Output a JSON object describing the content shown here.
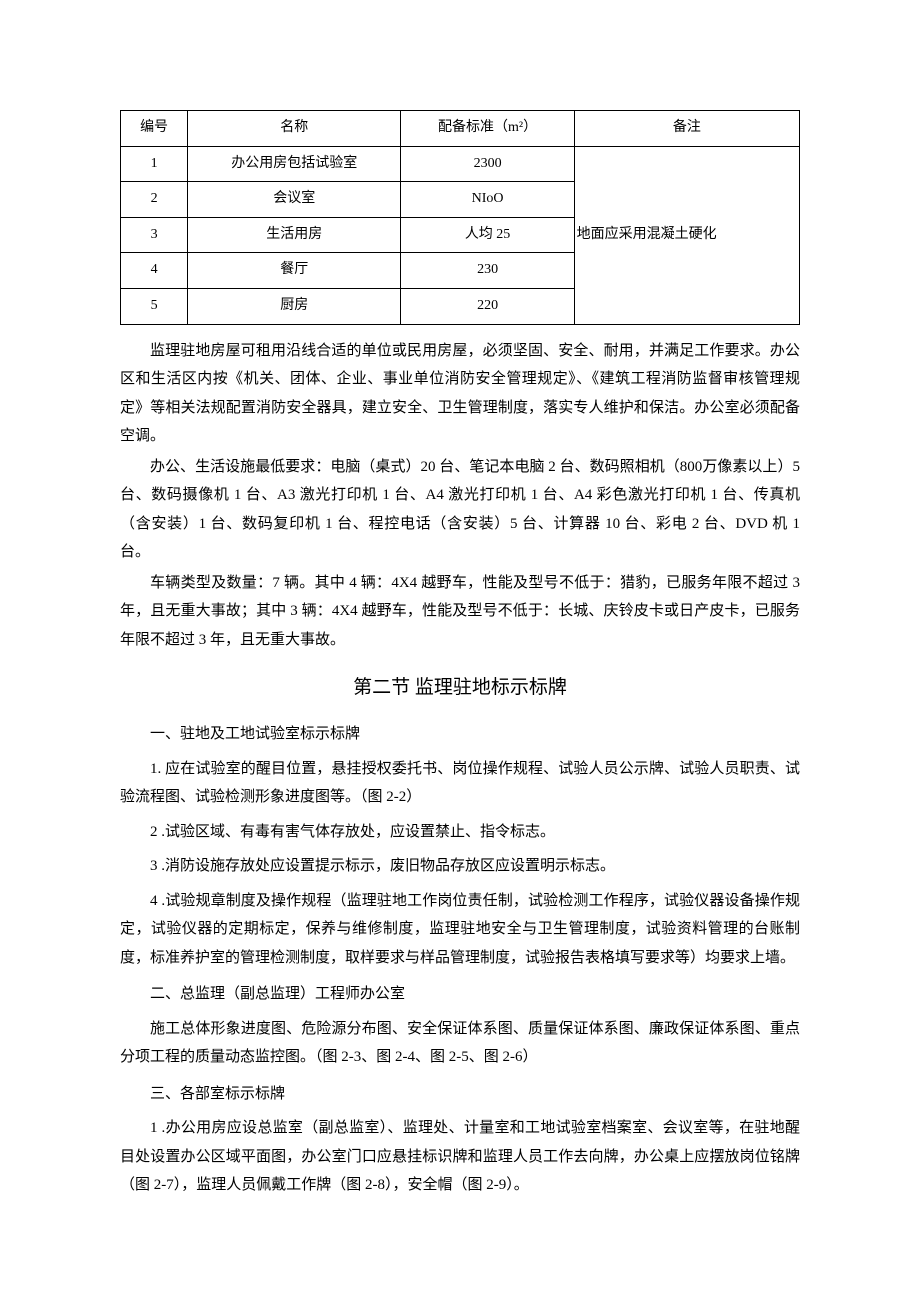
{
  "table": {
    "headers": [
      "编号",
      "名称",
      "配备标准（m²）",
      "备注"
    ],
    "rows": [
      {
        "num": "1",
        "name": "办公用房包括试验室",
        "std": "2300"
      },
      {
        "num": "2",
        "name": "会议室",
        "std": "NIoO"
      },
      {
        "num": "3",
        "name": "生活用房",
        "std": "人均 25"
      },
      {
        "num": "4",
        "name": "餐厅",
        "std": "230"
      },
      {
        "num": "5",
        "name": "厨房",
        "std": "220"
      }
    ],
    "note": "地面应采用混凝土硬化"
  },
  "paragraphs": {
    "p1": "监理驻地房屋可租用沿线合适的单位或民用房屋，必须坚固、安全、耐用，并满足工作要求。办公区和生活区内按《机关、团体、企业、事业单位消防安全管理规定》、《建筑工程消防监督审核管理规定》等相关法规配置消防安全器具，建立安全、卫生管理制度，落实专人维护和保洁。办公室必须配备空调。",
    "p2": "办公、生活设施最低要求：电脑（桌式）20 台、笔记本电脑 2 台、数码照相机（800万像素以上）5 台、数码摄像机 1 台、A3 激光打印机 1 台、A4 激光打印机 1 台、A4 彩色激光打印机 1 台、传真机（含安装）1 台、数码复印机 1 台、程控电话（含安装）5 台、计算器 10 台、彩电 2 台、DVD 机 1 台。",
    "p3": "车辆类型及数量：7 辆。其中 4 辆：4X4 越野车，性能及型号不低于：猎豹，已服务年限不超过 3 年，且无重大事故；其中 3 辆：4X4 越野车，性能及型号不低于：长城、庆铃皮卡或日产皮卡，已服务年限不超过 3 年，且无重大事故。"
  },
  "section2": {
    "title": "第二节 监理驻地标示标牌",
    "sub1": "一、驻地及工地试验室标示标牌",
    "item1": "1. 应在试验室的醒目位置，悬挂授权委托书、岗位操作规程、试验人员公示牌、试验人员职责、试验流程图、试验检测形象进度图等。（图 2-2）",
    "item2": "2 .试验区域、有毒有害气体存放处，应设置禁止、指令标志。",
    "item3": "3 .消防设施存放处应设置提示标示，废旧物品存放区应设置明示标志。",
    "item4": "4 .试验规章制度及操作规程（监理驻地工作岗位责任制，试验检测工作程序，试验仪器设备操作规定，试验仪器的定期标定，保养与维修制度，监理驻地安全与卫生管理制度，试验资料管理的台账制度，标准养护室的管理检测制度，取样要求与样品管理制度，试验报告表格填写要求等）均要求上墙。",
    "sub2": "二、总监理（副总监理）工程师办公室",
    "p4": "施工总体形象进度图、危险源分布图、安全保证体系图、质量保证体系图、廉政保证体系图、重点分项工程的质量动态监控图。（图 2-3、图 2-4、图 2-5、图 2-6）",
    "sub3": "三、各部室标示标牌",
    "item5": "1 .办公用房应设总监室（副总监室）、监理处、计量室和工地试验室档案室、会议室等，在驻地醒目处设置办公区域平面图，办公室门口应悬挂标识牌和监理人员工作去向牌，办公桌上应摆放岗位铭牌（图 2-7），监理人员佩戴工作牌（图 2-8），安全帽（图 2-9）。"
  }
}
